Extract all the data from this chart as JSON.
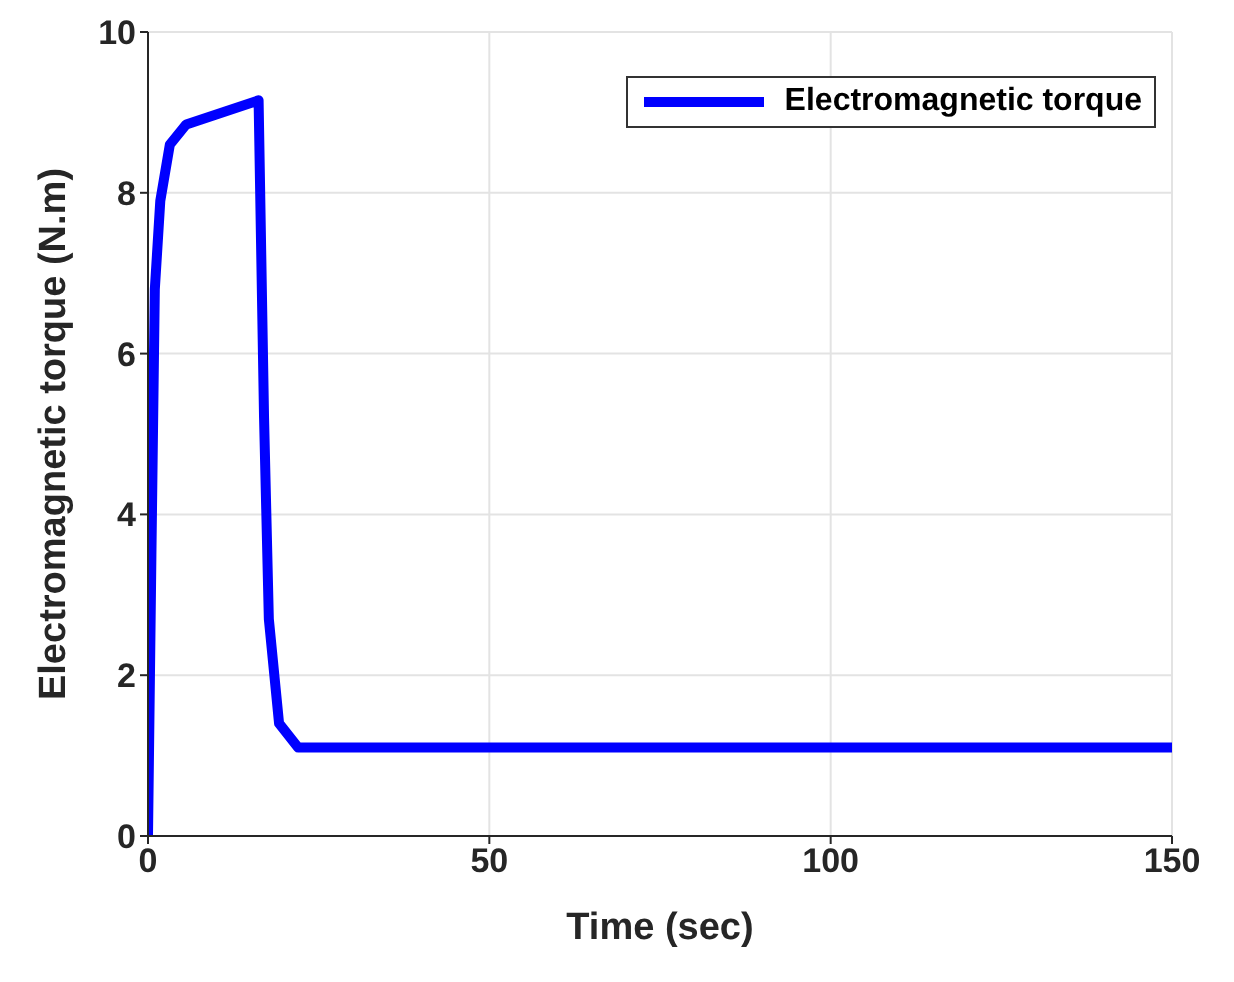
{
  "chart_data": {
    "type": "line",
    "xlabel": "Time (sec)",
    "ylabel": "Electromagnetic torque (N.m)",
    "xlim": [
      0,
      150
    ],
    "xticks": [
      0,
      50,
      100,
      150
    ],
    "ylim": [
      0,
      10
    ],
    "yticks": [
      0,
      2,
      4,
      6,
      8,
      10
    ],
    "grid": true,
    "legend": "top right",
    "series": [
      {
        "name": "Electromagnetic torque",
        "color": "#0000ff",
        "x": [
          0,
          0.5,
          1,
          1.8,
          3.2,
          5.6,
          16.2,
          17,
          17.7,
          19.2,
          22,
          30,
          150
        ],
        "values": [
          0,
          3.5,
          6.8,
          7.9,
          8.6,
          8.85,
          9.15,
          5.2,
          2.7,
          1.4,
          1.1,
          1.1,
          1.1
        ]
      }
    ]
  }
}
